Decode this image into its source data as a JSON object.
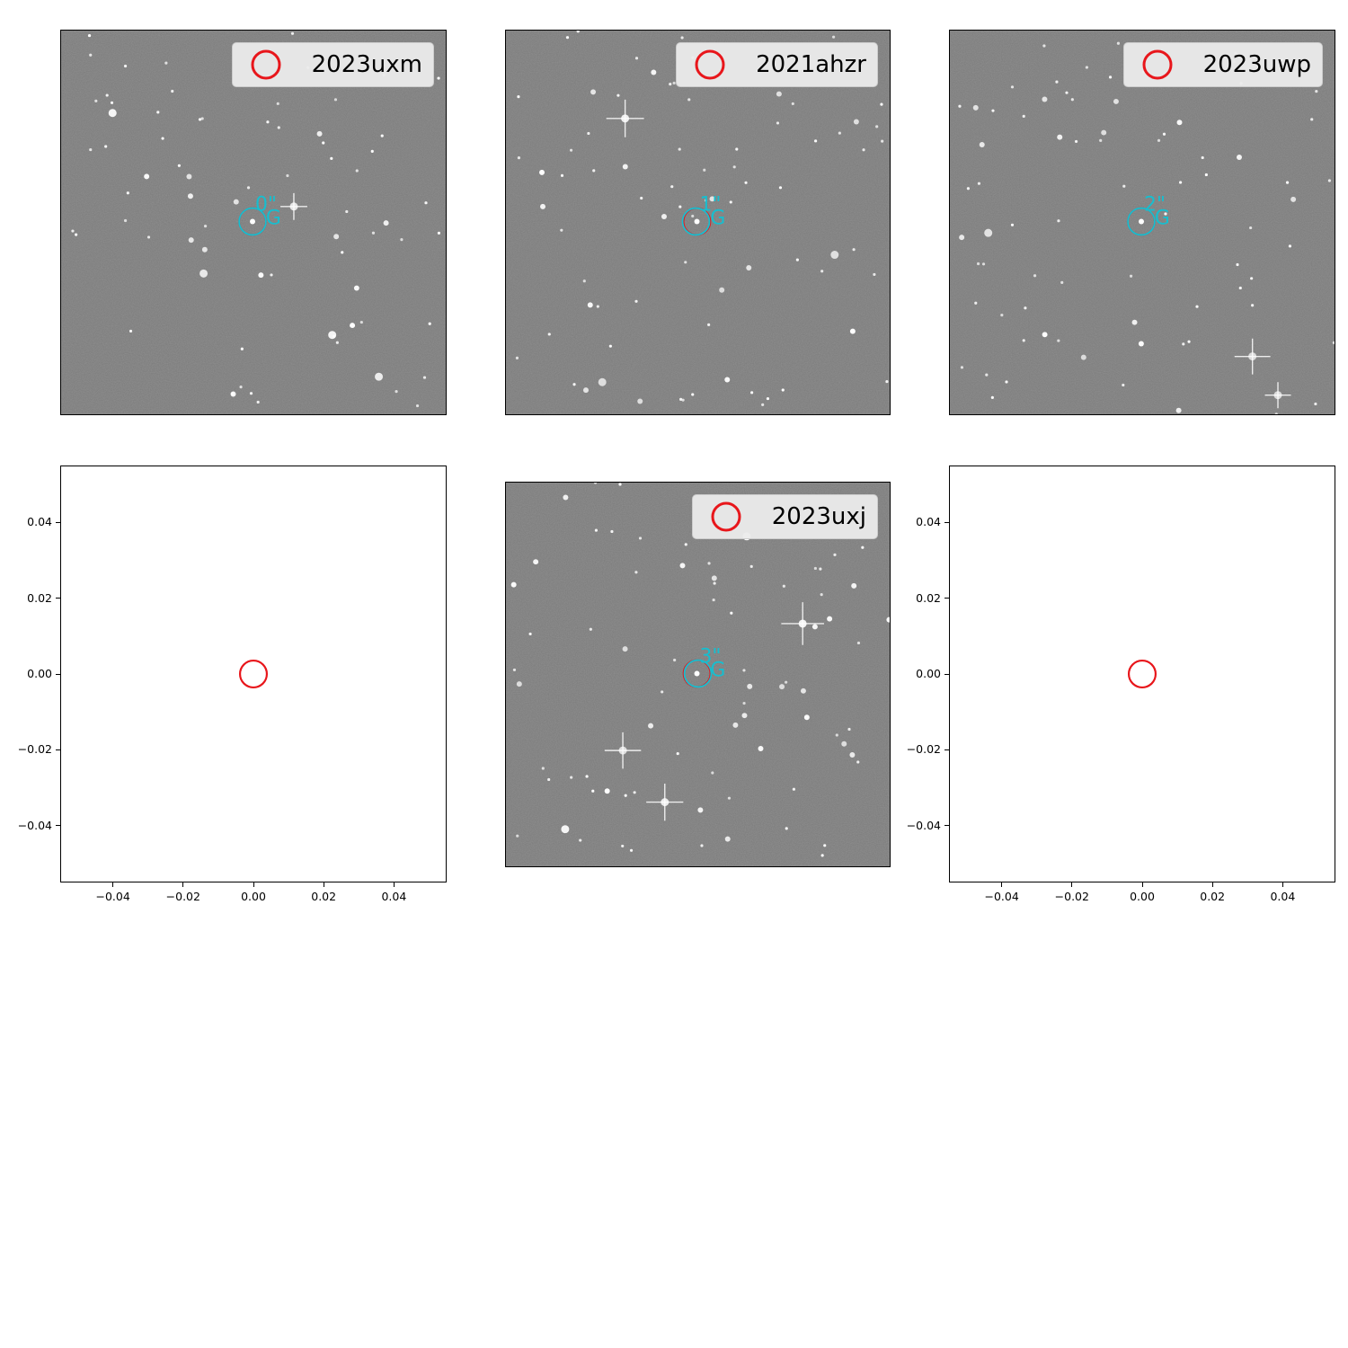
{
  "chart_data": [
    {
      "type": "scatter",
      "panel": 1,
      "kind": "image",
      "legend": {
        "label": "2023uxm",
        "marker": "red-circle",
        "placement": "upper right"
      },
      "host_marker": {
        "distance_label": "0\"",
        "tag_label": "G",
        "color": "#17becf"
      },
      "red_circle_offset": [
        0,
        0
      ],
      "cyan_circle_offset": [
        0,
        0
      ]
    },
    {
      "type": "scatter",
      "panel": 2,
      "kind": "image",
      "legend": {
        "label": "2021ahzr",
        "marker": "red-circle",
        "placement": "upper right"
      },
      "host_marker": {
        "distance_label": "1\"",
        "tag_label": "G",
        "color": "#17becf"
      },
      "red_circle_offset": [
        0,
        0
      ],
      "cyan_circle_offset": [
        -1,
        0
      ]
    },
    {
      "type": "scatter",
      "panel": 3,
      "kind": "image",
      "legend": {
        "label": "2023uwp",
        "marker": "red-circle",
        "placement": "upper right"
      },
      "host_marker": {
        "distance_label": "2\"",
        "tag_label": "G",
        "color": "#17becf"
      },
      "red_circle_offset": [
        0,
        0
      ],
      "cyan_circle_offset": [
        0,
        0
      ]
    },
    {
      "type": "scatter",
      "panel": 4,
      "kind": "axes",
      "points": [
        {
          "x": 0.0,
          "y": 0.0,
          "marker": "red-circle"
        }
      ],
      "xlim": [
        -0.055,
        0.055
      ],
      "ylim": [
        -0.055,
        0.055
      ],
      "xticks": [
        "−0.04",
        "−0.02",
        "0.00",
        "0.02",
        "0.04"
      ],
      "yticks": [
        "0.04",
        "0.02",
        "0.00",
        "−0.02",
        "−0.04"
      ],
      "xtick_values": [
        -0.04,
        -0.02,
        0.0,
        0.02,
        0.04
      ],
      "ytick_values": [
        0.04,
        0.02,
        0.0,
        -0.02,
        -0.04
      ]
    },
    {
      "type": "scatter",
      "panel": 5,
      "kind": "image",
      "legend": {
        "label": "2023uxj",
        "marker": "red-circle",
        "placement": "upper right"
      },
      "host_marker": {
        "distance_label": "3\"",
        "tag_label": "G",
        "color": "#17becf"
      },
      "red_circle_offset": [
        0,
        0
      ],
      "cyan_circle_offset": [
        1,
        0
      ]
    },
    {
      "type": "scatter",
      "panel": 6,
      "kind": "axes",
      "points": [
        {
          "x": 0.0,
          "y": 0.0,
          "marker": "red-circle"
        }
      ],
      "xlim": [
        -0.055,
        0.055
      ],
      "ylim": [
        -0.055,
        0.055
      ],
      "xticks": [
        "−0.04",
        "−0.02",
        "0.00",
        "0.02",
        "0.04"
      ],
      "yticks": [
        "0.04",
        "0.02",
        "0.00",
        "−0.02",
        "−0.04"
      ],
      "xtick_values": [
        -0.04,
        -0.02,
        0.0,
        0.02,
        0.04
      ],
      "ytick_values": [
        0.04,
        0.02,
        0.0,
        -0.02,
        -0.04
      ]
    }
  ],
  "colors": {
    "supernova_marker": "#e8161b",
    "host_marker": "#17becf",
    "image_background": "#7a7a7a"
  }
}
